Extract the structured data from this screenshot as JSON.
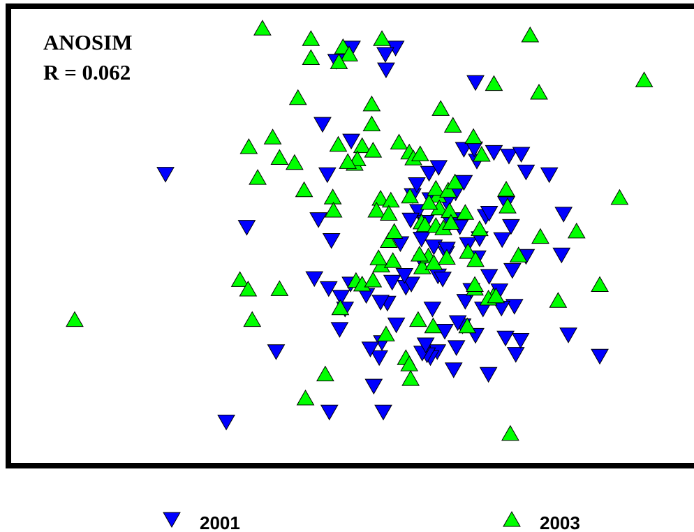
{
  "chart_data": {
    "type": "scatter",
    "title": "",
    "xlabel": "",
    "ylabel": "",
    "xlim": [
      0,
      100
    ],
    "ylim": [
      0,
      100
    ],
    "grid": false,
    "legend_position": "bottom",
    "annotations": [
      "ANOSIM",
      "R = 0.062"
    ],
    "series": [
      {
        "name": "2001",
        "marker": "triangle-down",
        "color": "#0000ff",
        "points": [
          [
            49.9,
            91.4
          ],
          [
            56.3,
            91.4
          ],
          [
            47.6,
            88.5
          ],
          [
            54.8,
            90.0
          ],
          [
            54.9,
            86.6
          ],
          [
            68.0,
            83.8
          ],
          [
            45.6,
            74.6
          ],
          [
            49.8,
            70.9
          ],
          [
            22.6,
            63.6
          ],
          [
            46.3,
            63.5
          ],
          [
            45.0,
            53.6
          ],
          [
            46.9,
            49.0
          ],
          [
            34.5,
            51.9
          ],
          [
            44.4,
            40.6
          ],
          [
            46.5,
            38.4
          ],
          [
            49.7,
            39.4
          ],
          [
            48.3,
            36.5
          ],
          [
            55.8,
            39.8
          ],
          [
            55.1,
            35.2
          ],
          [
            57.8,
            38.7
          ],
          [
            58.6,
            39.4
          ],
          [
            61.7,
            33.9
          ],
          [
            63.5,
            29.0
          ],
          [
            62.4,
            24.5
          ],
          [
            65.2,
            25.4
          ],
          [
            66.1,
            30.2
          ],
          [
            68.0,
            28.1
          ],
          [
            69.1,
            33.9
          ],
          [
            66.5,
            35.6
          ],
          [
            67.4,
            38.0
          ],
          [
            71.5,
            37.9
          ],
          [
            73.4,
            42.4
          ],
          [
            73.7,
            34.5
          ],
          [
            72.4,
            27.5
          ],
          [
            73.9,
            23.9
          ],
          [
            65.4,
            30.9
          ],
          [
            63.7,
            46.2
          ],
          [
            61.9,
            47.6
          ],
          [
            60.1,
            49.3
          ],
          [
            64.3,
            53.0
          ],
          [
            65.1,
            59.5
          ],
          [
            66.3,
            61.8
          ],
          [
            68.2,
            66.5
          ],
          [
            70.7,
            68.4
          ],
          [
            72.9,
            67.6
          ],
          [
            74.7,
            68.0
          ],
          [
            75.4,
            64.1
          ],
          [
            78.8,
            63.5
          ],
          [
            80.9,
            54.8
          ],
          [
            80.6,
            45.8
          ],
          [
            75.4,
            45.5
          ],
          [
            81.6,
            28.2
          ],
          [
            86.2,
            23.5
          ],
          [
            74.6,
            27.0
          ],
          [
            69.9,
            19.5
          ],
          [
            64.8,
            20.5
          ],
          [
            61.4,
            23.2
          ],
          [
            60.9,
            23.8
          ],
          [
            60.2,
            24.2
          ],
          [
            60.7,
            26.0
          ],
          [
            56.4,
            30.4
          ],
          [
            54.3,
            26.5
          ],
          [
            53.9,
            23.2
          ],
          [
            54.1,
            35.4
          ],
          [
            57.6,
            41.3
          ],
          [
            60.2,
            44.2
          ],
          [
            62.5,
            41.2
          ],
          [
            63.2,
            40.5
          ],
          [
            63.8,
            47.1
          ],
          [
            65.5,
            53.6
          ],
          [
            66.9,
            48.1
          ],
          [
            68.3,
            45.2
          ],
          [
            68.6,
            49.4
          ],
          [
            70.0,
            41.1
          ],
          [
            71.8,
            34.1
          ],
          [
            72.5,
            57.1
          ],
          [
            73.2,
            52.1
          ],
          [
            71.9,
            49.2
          ],
          [
            58.8,
            58.9
          ],
          [
            59.4,
            61.3
          ],
          [
            59.6,
            55.4
          ],
          [
            61.4,
            58.0
          ],
          [
            63.8,
            57.4
          ],
          [
            61.2,
            63.8
          ],
          [
            62.6,
            65.1
          ],
          [
            66.3,
            69.1
          ],
          [
            67.8,
            69.2
          ],
          [
            38.8,
            24.5
          ],
          [
            31.5,
            9.0
          ],
          [
            46.6,
            11.2
          ],
          [
            54.5,
            11.2
          ],
          [
            53.1,
            16.9
          ],
          [
            52.6,
            25.1
          ],
          [
            48.1,
            29.4
          ],
          [
            48.9,
            33.9
          ],
          [
            52.0,
            36.9
          ],
          [
            57.0,
            48.3
          ],
          [
            58.5,
            53.5
          ],
          [
            60.7,
            53.0
          ],
          [
            65.7,
            52.0
          ],
          [
            69.5,
            54.3
          ],
          [
            70.0,
            55.0
          ]
        ]
      },
      {
        "name": "2003",
        "marker": "triangle-up",
        "color": "#00ff00",
        "points": [
          [
            36.8,
            95.8
          ],
          [
            43.9,
            93.5
          ],
          [
            43.9,
            89.3
          ],
          [
            48.6,
            91.7
          ],
          [
            49.5,
            90.1
          ],
          [
            48.0,
            88.4
          ],
          [
            54.3,
            93.5
          ],
          [
            76.0,
            94.3
          ],
          [
            92.7,
            84.4
          ],
          [
            70.7,
            83.6
          ],
          [
            77.3,
            81.7
          ],
          [
            42.0,
            80.5
          ],
          [
            52.8,
            79.1
          ],
          [
            52.8,
            74.7
          ],
          [
            62.9,
            78.1
          ],
          [
            64.7,
            74.4
          ],
          [
            67.7,
            71.9
          ],
          [
            68.9,
            68.0
          ],
          [
            38.3,
            71.8
          ],
          [
            34.8,
            69.7
          ],
          [
            39.3,
            67.3
          ],
          [
            41.5,
            66.2
          ],
          [
            36.1,
            62.9
          ],
          [
            42.9,
            60.2
          ],
          [
            47.9,
            70.2
          ],
          [
            50.3,
            66.0
          ],
          [
            51.4,
            69.9
          ],
          [
            53.0,
            68.9
          ],
          [
            56.8,
            70.7
          ],
          [
            58.3,
            68.5
          ],
          [
            47.1,
            58.6
          ],
          [
            47.2,
            55.7
          ],
          [
            50.7,
            67.0
          ],
          [
            54.1,
            58.3
          ],
          [
            53.5,
            55.7
          ],
          [
            55.6,
            57.9
          ],
          [
            58.4,
            58.8
          ],
          [
            55.3,
            49.0
          ],
          [
            60.1,
            53.1
          ],
          [
            62.5,
            59.0
          ],
          [
            62.7,
            56.2
          ],
          [
            64.2,
            55.6
          ],
          [
            68.6,
            51.6
          ],
          [
            72.5,
            60.3
          ],
          [
            72.7,
            56.6
          ],
          [
            77.5,
            49.9
          ],
          [
            82.8,
            51.1
          ],
          [
            74.3,
            45.8
          ],
          [
            89.1,
            58.5
          ],
          [
            86.2,
            39.3
          ],
          [
            80.1,
            35.8
          ],
          [
            70.6,
            36.8
          ],
          [
            67.9,
            38.5
          ],
          [
            54.2,
            43.6
          ],
          [
            55.9,
            44.6
          ],
          [
            60.2,
            43.2
          ],
          [
            61.1,
            45.6
          ],
          [
            61.9,
            44.1
          ],
          [
            63.8,
            45.3
          ],
          [
            66.9,
            46.6
          ],
          [
            68.0,
            44.8
          ],
          [
            33.5,
            40.4
          ],
          [
            34.7,
            38.3
          ],
          [
            39.3,
            38.4
          ],
          [
            35.3,
            31.6
          ],
          [
            48.2,
            34.2
          ],
          [
            50.5,
            40.2
          ],
          [
            51.4,
            39.4
          ],
          [
            53.0,
            40.3
          ],
          [
            59.6,
            31.6
          ],
          [
            61.8,
            30.2
          ],
          [
            66.8,
            30.2
          ],
          [
            67.9,
            39.3
          ],
          [
            69.9,
            36.3
          ],
          [
            71.0,
            36.8
          ],
          [
            54.9,
            28.4
          ],
          [
            57.8,
            23.2
          ],
          [
            58.3,
            21.8
          ],
          [
            58.5,
            18.6
          ],
          [
            46.0,
            19.6
          ],
          [
            43.1,
            14.3
          ],
          [
            73.1,
            6.5
          ],
          [
            9.3,
            31.6
          ],
          [
            60.6,
            52.5
          ],
          [
            62.2,
            52.3
          ],
          [
            63.3,
            51.8
          ],
          [
            64.4,
            53.0
          ],
          [
            66.5,
            55.2
          ],
          [
            55.3,
            55.0
          ],
          [
            56.1,
            51.0
          ],
          [
            58.9,
            67.2
          ],
          [
            59.9,
            68.1
          ],
          [
            61.2,
            57.4
          ],
          [
            62.2,
            60.5
          ],
          [
            64.0,
            60.1
          ],
          [
            65.0,
            61.9
          ],
          [
            49.3,
            66.4
          ],
          [
            53.8,
            45.2
          ],
          [
            59.8,
            46.0
          ]
        ]
      }
    ]
  }
}
